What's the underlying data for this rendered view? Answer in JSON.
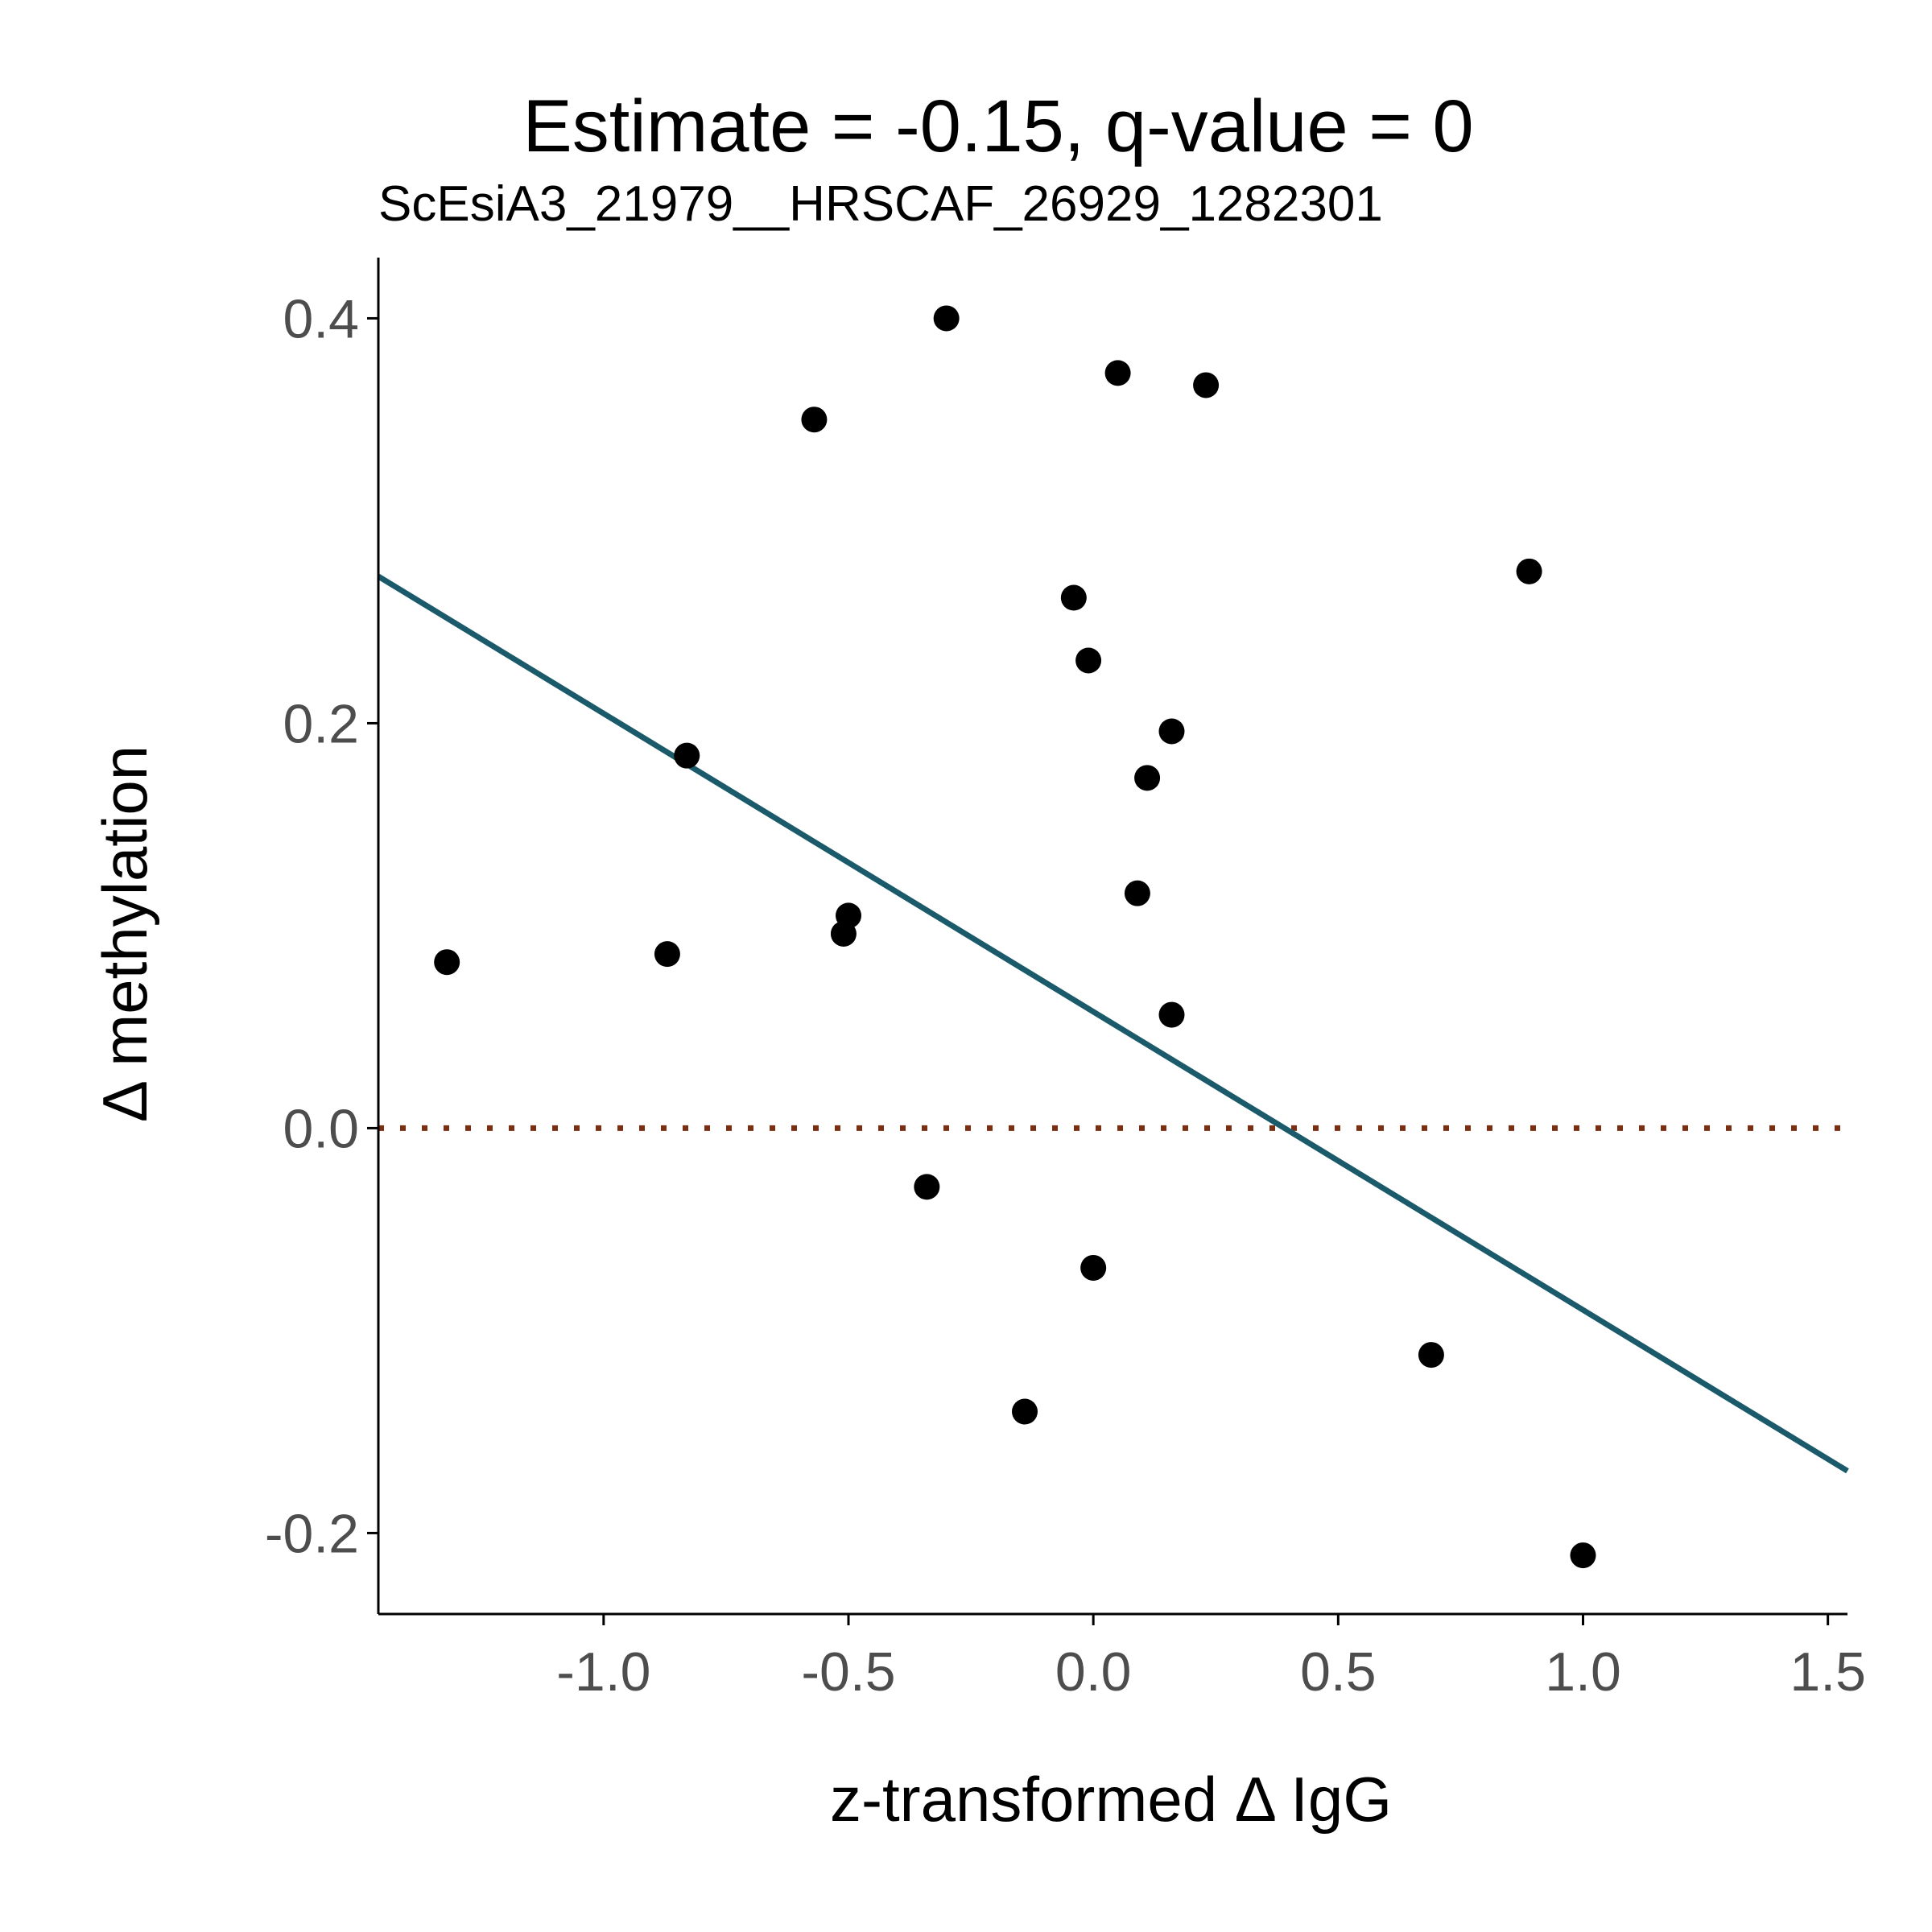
{
  "chart_data": {
    "type": "scatter",
    "title": "Estimate = -0.15, q-value = 0",
    "subtitle": "ScEsiA3_21979__HRSCAF_26929_1282301",
    "xlabel": "z-transformed Δ IgG",
    "ylabel": "Δ methylation",
    "xlim": [
      -1.46,
      1.54
    ],
    "ylim": [
      -0.24,
      0.43
    ],
    "x_ticks": [
      -1.0,
      -0.5,
      0.0,
      0.5,
      1.0,
      1.5
    ],
    "x_tick_labels": [
      "-1.0",
      "-0.5",
      "0.0",
      "0.5",
      "1.0",
      "1.5"
    ],
    "y_ticks": [
      -0.2,
      0.0,
      0.2,
      0.4
    ],
    "y_tick_labels": [
      "-0.2",
      "0.0",
      "0.2",
      "0.4"
    ],
    "grid": false,
    "points": [
      {
        "x": -0.3,
        "y": 0.4
      },
      {
        "x": 0.05,
        "y": 0.373
      },
      {
        "x": 0.23,
        "y": 0.367
      },
      {
        "x": -0.57,
        "y": 0.35
      },
      {
        "x": 0.89,
        "y": 0.275
      },
      {
        "x": -0.04,
        "y": 0.262
      },
      {
        "x": -0.01,
        "y": 0.231
      },
      {
        "x": 0.16,
        "y": 0.196
      },
      {
        "x": -0.83,
        "y": 0.184
      },
      {
        "x": 0.11,
        "y": 0.173
      },
      {
        "x": 0.09,
        "y": 0.116
      },
      {
        "x": -0.5,
        "y": 0.105
      },
      {
        "x": -0.51,
        "y": 0.096
      },
      {
        "x": -0.87,
        "y": 0.086
      },
      {
        "x": -1.32,
        "y": 0.082
      },
      {
        "x": 0.16,
        "y": 0.056
      },
      {
        "x": -0.34,
        "y": -0.029
      },
      {
        "x": 0.0,
        "y": -0.069
      },
      {
        "x": -0.14,
        "y": -0.14
      },
      {
        "x": 0.69,
        "y": -0.112
      },
      {
        "x": 1.0,
        "y": -0.211
      }
    ],
    "fit_line": {
      "slope": -0.1473,
      "intercept": 0.0575,
      "color": "#1a5a6a"
    },
    "reference_line": {
      "y": 0.0,
      "style": "dotted",
      "color": "#7a2e12"
    },
    "point_color": "#000000"
  }
}
